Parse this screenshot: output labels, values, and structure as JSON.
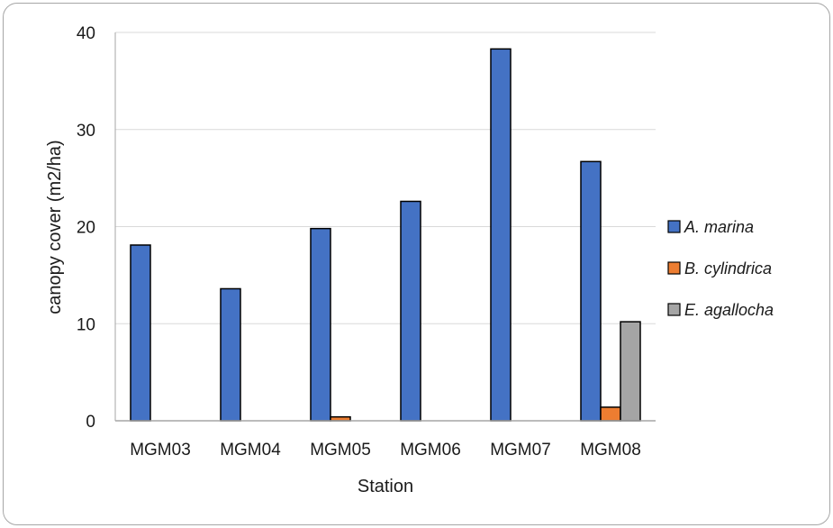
{
  "chart_data": {
    "type": "bar",
    "title": "",
    "xlabel": "Station",
    "ylabel": "canopy cover  (m2/ha)",
    "ylim": [
      0,
      40
    ],
    "yticks": [
      0,
      10,
      20,
      30,
      40
    ],
    "grid": true,
    "legend_position": "right",
    "categories": [
      "MGM03",
      "MGM04",
      "MGM05",
      "MGM06",
      "MGM07",
      "MGM08"
    ],
    "series": [
      {
        "name": "A. marina",
        "color": "#4472c4",
        "values": [
          18.1,
          13.6,
          19.8,
          22.6,
          38.3,
          26.7
        ]
      },
      {
        "name": "B. cylindrica",
        "color": "#ed7d31",
        "values": [
          0,
          0,
          0.4,
          0,
          0,
          1.4
        ]
      },
      {
        "name": "E. agallocha",
        "color": "#a5a5a5",
        "values": [
          0,
          0,
          0,
          0,
          0,
          10.2
        ]
      }
    ]
  }
}
